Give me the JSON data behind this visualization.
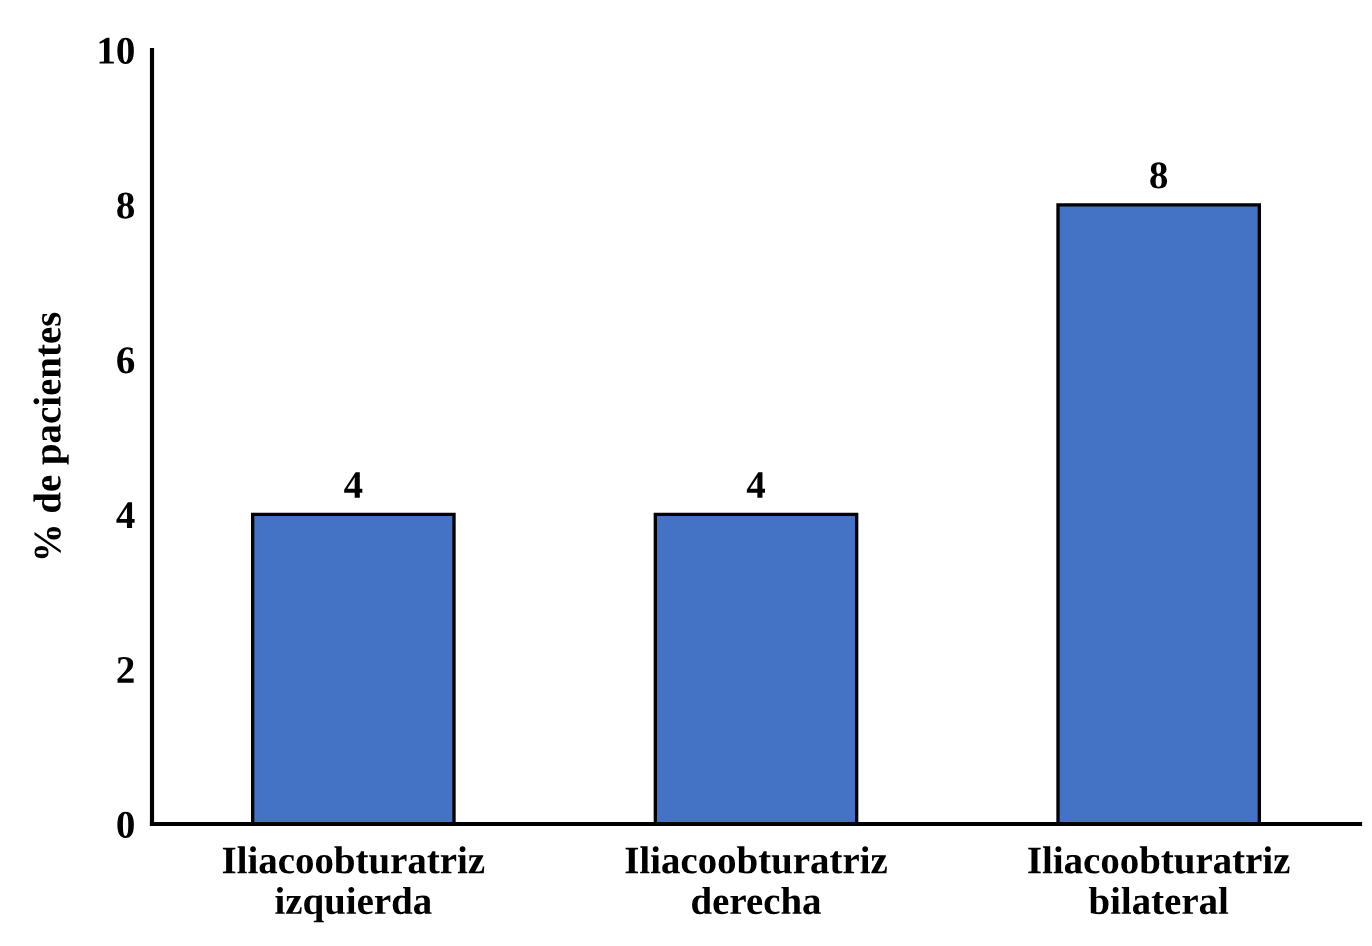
{
  "chart_data": {
    "type": "bar",
    "ylabel": "% de pacientes",
    "categories": [
      "Iliacoobturatriz\nizquierda",
      "Iliacoobturatriz\nderecha",
      "Iliacoobturatriz\nbilateral"
    ],
    "values": [
      4,
      4,
      8
    ],
    "color": "#4472c4",
    "ylim": [
      0,
      10
    ],
    "yticks": [
      0,
      2,
      4,
      6,
      8,
      10
    ],
    "grid": false,
    "data_labels": true
  }
}
